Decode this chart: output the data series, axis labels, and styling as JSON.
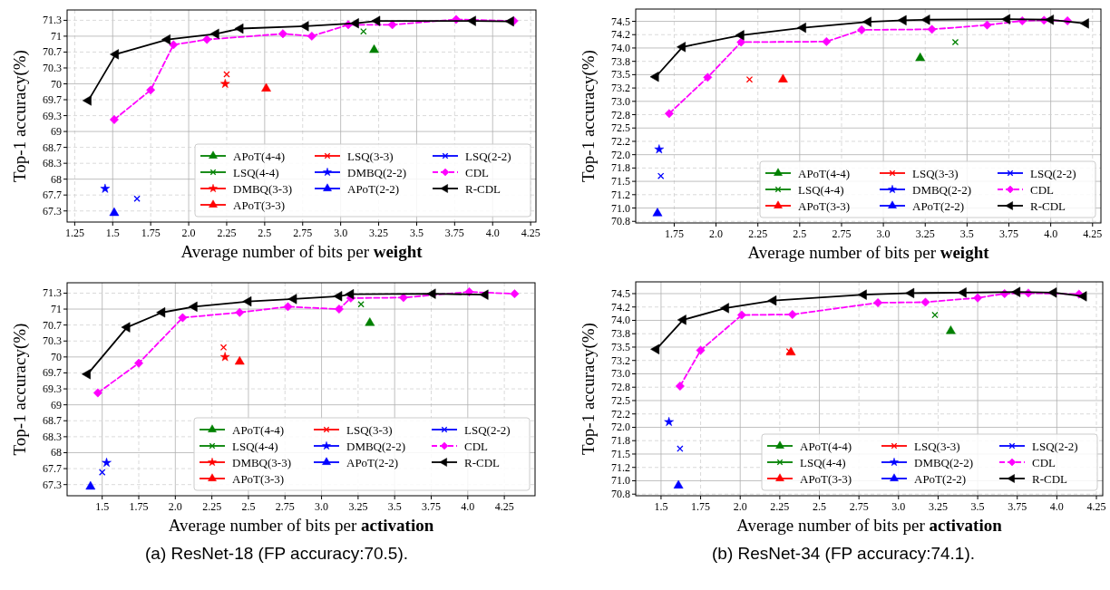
{
  "chart_data": [
    {
      "type": "line",
      "xlabel": "Average number of bits per weight",
      "ylabel": "Top-1 accuracy(%)",
      "xlim": [
        1.2,
        4.285
      ],
      "ylim": [
        67.1,
        71.55
      ],
      "xticks": [
        1.25,
        1.5,
        1.75,
        {
          "value": 2,
          "label": "2.0"
        },
        2.25,
        2.5,
        2.75,
        {
          "value": 3,
          "label": "3.0"
        },
        3.25,
        3.5,
        3.75,
        {
          "value": 4,
          "label": "4.0"
        },
        4.25
      ],
      "yticks": [
        {
          "value": 67.333,
          "label": "67.3"
        },
        {
          "value": 67.667,
          "label": "67.7"
        },
        68,
        {
          "value": 68.333,
          "label": "68.3"
        },
        {
          "value": 68.667,
          "label": "68.7"
        },
        69,
        {
          "value": 69.333,
          "label": "69.3"
        },
        {
          "value": 69.667,
          "label": "69.7"
        },
        70,
        {
          "value": 70.333,
          "label": "70.3"
        },
        {
          "value": 70.667,
          "label": "70.7"
        },
        71,
        {
          "value": 71.333,
          "label": "71.3"
        }
      ],
      "grid": true,
      "legend": "bottom right",
      "series": [
        {
          "name": "APoT(4-4)",
          "type": "scatter",
          "marker": "triangle",
          "color": "#008000",
          "x": [
            3.22
          ],
          "values": [
            70.71
          ]
        },
        {
          "name": "LSQ(4-4)",
          "type": "scatter",
          "marker": "cross",
          "color": "#008000",
          "x": [
            3.15
          ],
          "values": [
            71.1
          ]
        },
        {
          "name": "DMBQ(3-3)",
          "type": "scatter",
          "marker": "star",
          "color": "#ff0000",
          "x": [
            2.24
          ],
          "values": [
            70.0
          ]
        },
        {
          "name": "APoT(3-3)",
          "type": "scatter",
          "marker": "triangle",
          "color": "#ff0000",
          "x": [
            2.51
          ],
          "values": [
            69.9
          ]
        },
        {
          "name": "LSQ(3-3)",
          "type": "scatter",
          "marker": "cross",
          "color": "#ff0000",
          "x": [
            2.25
          ],
          "values": [
            70.2
          ]
        },
        {
          "name": "DMBQ(2-2)",
          "type": "scatter",
          "marker": "star",
          "color": "#0000ff",
          "x": [
            1.45
          ],
          "values": [
            67.8
          ]
        },
        {
          "name": "APoT(2-2)",
          "type": "scatter",
          "marker": "triangle",
          "color": "#0000ff",
          "x": [
            1.51
          ],
          "values": [
            67.29
          ]
        },
        {
          "name": "LSQ(2-2)",
          "type": "scatter",
          "marker": "cross",
          "color": "#0000ff",
          "x": [
            1.66
          ],
          "values": [
            67.59
          ]
        },
        {
          "name": "CDL",
          "type": "line",
          "marker": "diamond",
          "line_style": "dashed",
          "color": "#ff00ff",
          "x": [
            1.51,
            1.75,
            1.9,
            2.12,
            2.62,
            2.81,
            3.05,
            3.34,
            3.76,
            4.14
          ],
          "values": [
            69.25,
            69.87,
            70.82,
            70.93,
            71.05,
            71.0,
            71.24,
            71.24,
            71.35,
            71.32
          ]
        },
        {
          "name": "R-CDL",
          "type": "line",
          "marker": "triangle-left",
          "line_style": "solid",
          "color": "#000000",
          "x": [
            1.34,
            1.52,
            1.86,
            2.18,
            2.34,
            2.77,
            3.1,
            3.24,
            3.87,
            4.12
          ],
          "values": [
            69.65,
            70.62,
            70.93,
            71.05,
            71.16,
            71.21,
            71.27,
            71.32,
            71.32,
            71.31
          ]
        }
      ]
    },
    {
      "type": "line",
      "xlabel": "Average number of bits per weight",
      "ylabel": "Top-1 accuracy(%)",
      "xlim": [
        1.52,
        4.3
      ],
      "ylim": [
        70.72,
        74.73
      ],
      "xticks": [
        1.75,
        {
          "value": 2,
          "label": "2.0"
        },
        2.25,
        2.5,
        2.75,
        {
          "value": 3,
          "label": "3.0"
        },
        3.25,
        3.5,
        3.75,
        {
          "value": 4,
          "label": "4.0"
        },
        4.25
      ],
      "yticks": [
        {
          "value": 70.75,
          "label": "70.8"
        },
        {
          "value": 71,
          "label": "71.0"
        },
        {
          "value": 71.25,
          "label": "71.2"
        },
        71.5,
        {
          "value": 71.75,
          "label": "71.8"
        },
        {
          "value": 72,
          "label": "72.0"
        },
        {
          "value": 72.25,
          "label": "72.2"
        },
        72.5,
        {
          "value": 72.75,
          "label": "72.8"
        },
        {
          "value": 73,
          "label": "73.0"
        },
        {
          "value": 73.25,
          "label": "73.2"
        },
        73.5,
        {
          "value": 73.75,
          "label": "73.8"
        },
        {
          "value": 74,
          "label": "74.0"
        },
        {
          "value": 74.25,
          "label": "74.2"
        },
        74.5
      ],
      "grid": true,
      "legend": "bottom right",
      "series": [
        {
          "name": "APoT(4-4)",
          "type": "scatter",
          "marker": "triangle",
          "color": "#008000",
          "x": [
            3.22
          ],
          "values": [
            73.81
          ]
        },
        {
          "name": "LSQ(4-4)",
          "type": "scatter",
          "marker": "cross",
          "color": "#008000",
          "x": [
            3.43
          ],
          "values": [
            74.11
          ]
        },
        {
          "name": "APoT(3-3)",
          "type": "scatter",
          "marker": "triangle",
          "color": "#ff0000",
          "x": [
            2.4
          ],
          "values": [
            73.41
          ]
        },
        {
          "name": "LSQ(3-3)",
          "type": "scatter",
          "marker": "cross",
          "color": "#ff0000",
          "x": [
            2.2
          ],
          "values": [
            73.41
          ]
        },
        {
          "name": "DMBQ(2-2)",
          "type": "scatter",
          "marker": "star",
          "color": "#0000ff",
          "x": [
            1.66
          ],
          "values": [
            72.1
          ]
        },
        {
          "name": "APoT(2-2)",
          "type": "scatter",
          "marker": "triangle",
          "color": "#0000ff",
          "x": [
            1.65
          ],
          "values": [
            70.9
          ]
        },
        {
          "name": "LSQ(2-2)",
          "type": "scatter",
          "marker": "cross",
          "color": "#0000ff",
          "x": [
            1.67
          ],
          "values": [
            71.6
          ]
        },
        {
          "name": "CDL",
          "type": "line",
          "marker": "diamond",
          "line_style": "dashed",
          "color": "#ff00ff",
          "x": [
            1.72,
            1.95,
            2.15,
            2.66,
            2.87,
            3.29,
            3.62,
            3.83,
            3.96,
            4.1
          ],
          "values": [
            72.77,
            73.45,
            74.11,
            74.12,
            74.34,
            74.35,
            74.43,
            74.51,
            74.52,
            74.51
          ]
        },
        {
          "name": "R-CDL",
          "type": "line",
          "marker": "triangle-left",
          "line_style": "solid",
          "color": "#000000",
          "x": [
            1.64,
            1.8,
            2.15,
            2.52,
            2.91,
            3.12,
            3.26,
            3.74,
            4.0,
            4.21
          ],
          "values": [
            73.46,
            74.02,
            74.24,
            74.38,
            74.49,
            74.52,
            74.53,
            74.54,
            74.53,
            74.46
          ]
        }
      ]
    },
    {
      "type": "line",
      "xlabel": "Average number of bits per activation",
      "ylabel": "Top-1 accuracy(%)",
      "xlim": [
        1.26,
        4.46
      ],
      "ylim": [
        67.1,
        71.55
      ],
      "xticks": [
        1.5,
        1.75,
        {
          "value": 2,
          "label": "2.0"
        },
        2.25,
        2.5,
        2.75,
        {
          "value": 3,
          "label": "3.0"
        },
        3.25,
        3.5,
        3.75,
        {
          "value": 4,
          "label": "4.0"
        },
        4.25
      ],
      "yticks": [
        {
          "value": 67.333,
          "label": "67.3"
        },
        {
          "value": 67.667,
          "label": "67.7"
        },
        68,
        {
          "value": 68.333,
          "label": "68.3"
        },
        {
          "value": 68.667,
          "label": "68.7"
        },
        69,
        {
          "value": 69.333,
          "label": "69.3"
        },
        {
          "value": 69.667,
          "label": "69.7"
        },
        70,
        {
          "value": 70.333,
          "label": "70.3"
        },
        {
          "value": 70.667,
          "label": "70.7"
        },
        71,
        {
          "value": 71.333,
          "label": "71.3"
        }
      ],
      "grid": true,
      "legend": "bottom right",
      "annotations": [
        "(a) ResNet-18 (FP accuracy:70.5)."
      ],
      "series": [
        {
          "name": "APoT(4-4)",
          "type": "scatter",
          "marker": "triangle",
          "color": "#008000",
          "x": [
            3.33
          ],
          "values": [
            70.71
          ]
        },
        {
          "name": "LSQ(4-4)",
          "type": "scatter",
          "marker": "cross",
          "color": "#008000",
          "x": [
            3.27
          ],
          "values": [
            71.1
          ]
        },
        {
          "name": "DMBQ(3-3)",
          "type": "scatter",
          "marker": "star",
          "color": "#ff0000",
          "x": [
            2.34
          ],
          "values": [
            70.0
          ]
        },
        {
          "name": "APoT(3-3)",
          "type": "scatter",
          "marker": "triangle",
          "color": "#ff0000",
          "x": [
            2.44
          ],
          "values": [
            69.9
          ]
        },
        {
          "name": "LSQ(3-3)",
          "type": "scatter",
          "marker": "cross",
          "color": "#ff0000",
          "x": [
            2.33
          ],
          "values": [
            70.2
          ]
        },
        {
          "name": "DMBQ(2-2)",
          "type": "scatter",
          "marker": "star",
          "color": "#0000ff",
          "x": [
            1.53
          ],
          "values": [
            67.79
          ]
        },
        {
          "name": "APoT(2-2)",
          "type": "scatter",
          "marker": "triangle",
          "color": "#0000ff",
          "x": [
            1.42
          ],
          "values": [
            67.29
          ]
        },
        {
          "name": "LSQ(2-2)",
          "type": "scatter",
          "marker": "cross",
          "color": "#0000ff",
          "x": [
            1.5
          ],
          "values": [
            67.59
          ]
        },
        {
          "name": "CDL",
          "type": "line",
          "marker": "diamond",
          "line_style": "dashed",
          "color": "#ff00ff",
          "x": [
            1.47,
            1.75,
            2.05,
            2.44,
            2.77,
            3.12,
            3.2,
            3.56,
            4.01,
            4.32
          ],
          "values": [
            69.25,
            69.87,
            70.82,
            70.93,
            71.05,
            71.0,
            71.23,
            71.24,
            71.36,
            71.32
          ]
        },
        {
          "name": "R-CDL",
          "type": "line",
          "marker": "triangle-left",
          "line_style": "solid",
          "color": "#000000",
          "x": [
            1.4,
            1.67,
            1.91,
            2.13,
            2.5,
            2.81,
            3.12,
            3.2,
            3.76,
            4.12
          ],
          "values": [
            69.64,
            70.62,
            70.93,
            71.05,
            71.16,
            71.21,
            71.27,
            71.31,
            71.32,
            71.3
          ]
        }
      ]
    },
    {
      "type": "line",
      "xlabel": "Average number of bits per activation",
      "ylabel": "Top-1 accuracy(%)",
      "xlim": [
        1.34,
        4.29
      ],
      "ylim": [
        70.72,
        74.72
      ],
      "xticks": [
        1.5,
        1.75,
        {
          "value": 2,
          "label": "2.0"
        },
        2.25,
        2.5,
        2.75,
        {
          "value": 3,
          "label": "3.0"
        },
        3.25,
        3.5,
        3.75,
        {
          "value": 4,
          "label": "4.0"
        },
        4.25
      ],
      "yticks": [
        {
          "value": 70.75,
          "label": "70.8"
        },
        {
          "value": 71,
          "label": "71.0"
        },
        {
          "value": 71.25,
          "label": "71.2"
        },
        71.5,
        {
          "value": 71.75,
          "label": "71.8"
        },
        {
          "value": 72,
          "label": "72.0"
        },
        {
          "value": 72.25,
          "label": "72.2"
        },
        72.5,
        {
          "value": 72.75,
          "label": "72.8"
        },
        {
          "value": 73,
          "label": "73.0"
        },
        {
          "value": 73.25,
          "label": "73.2"
        },
        73.5,
        {
          "value": 73.75,
          "label": "73.8"
        },
        {
          "value": 74,
          "label": "74.0"
        },
        {
          "value": 74.25,
          "label": "74.2"
        },
        74.5
      ],
      "grid": true,
      "legend": "bottom right",
      "annotations": [
        "(b) ResNet-34 (FP accuracy:74.1)."
      ],
      "series": [
        {
          "name": "APoT(4-4)",
          "type": "scatter",
          "marker": "triangle",
          "color": "#008000",
          "x": [
            3.33
          ],
          "values": [
            73.8
          ]
        },
        {
          "name": "LSQ(4-4)",
          "type": "scatter",
          "marker": "cross",
          "color": "#008000",
          "x": [
            3.23
          ],
          "values": [
            74.1
          ]
        },
        {
          "name": "APoT(3-3)",
          "type": "scatter",
          "marker": "triangle",
          "color": "#ff0000",
          "x": [
            2.32
          ],
          "values": [
            73.4
          ]
        },
        {
          "name": "LSQ(3-3)",
          "type": "scatter",
          "marker": "cross",
          "color": "#ff0000",
          "x": [
            2.31
          ],
          "values": [
            73.42
          ]
        },
        {
          "name": "DMBQ(2-2)",
          "type": "scatter",
          "marker": "star",
          "color": "#0000ff",
          "x": [
            1.55
          ],
          "values": [
            72.1
          ]
        },
        {
          "name": "APoT(2-2)",
          "type": "scatter",
          "marker": "triangle",
          "color": "#0000ff",
          "x": [
            1.61
          ],
          "values": [
            70.91
          ]
        },
        {
          "name": "LSQ(2-2)",
          "type": "scatter",
          "marker": "cross",
          "color": "#0000ff",
          "x": [
            1.62
          ],
          "values": [
            71.6
          ]
        },
        {
          "name": "CDL",
          "type": "line",
          "marker": "diamond",
          "line_style": "dashed",
          "color": "#ff00ff",
          "x": [
            1.62,
            1.75,
            2.01,
            2.33,
            2.87,
            3.17,
            3.5,
            3.67,
            3.82,
            4.14
          ],
          "values": [
            72.77,
            73.44,
            74.1,
            74.11,
            74.33,
            74.34,
            74.42,
            74.5,
            74.51,
            74.49
          ]
        },
        {
          "name": "R-CDL",
          "type": "line",
          "marker": "triangle-left",
          "line_style": "solid",
          "color": "#000000",
          "x": [
            1.47,
            1.64,
            1.91,
            2.21,
            2.78,
            3.08,
            3.41,
            3.75,
            3.98,
            4.17
          ],
          "values": [
            73.46,
            74.01,
            74.23,
            74.37,
            74.48,
            74.51,
            74.52,
            74.53,
            74.52,
            74.45
          ]
        }
      ]
    }
  ]
}
